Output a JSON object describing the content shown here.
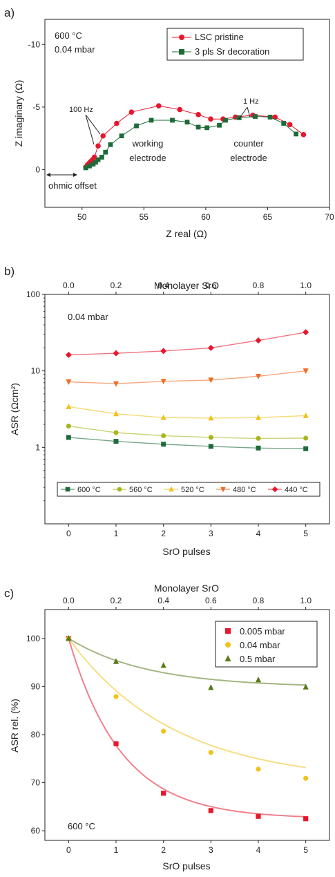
{
  "chart_data": [
    {
      "panel_label": "a)",
      "type": "line",
      "xlabel": "Z real (Ω)",
      "ylabel": "Z imaginary (Ω)",
      "xlim": [
        47,
        70
      ],
      "ylim": [
        3,
        -12
      ],
      "xticks": [
        50,
        55,
        60,
        65,
        70
      ],
      "yticks": [
        0,
        -5,
        -10
      ],
      "annotation_lines": [
        "600 °C",
        "0.04 mbar"
      ],
      "annotations": {
        "hz100": "100 Hz",
        "hz1": "1 Hz",
        "working": [
          "working",
          "electrode"
        ],
        "counter": [
          "counter",
          "electrode"
        ],
        "ohmic": "ohmic offset"
      },
      "series": [
        {
          "name": "LSC pristine",
          "color": "#e8162c",
          "marker": "circle",
          "x": [
            50.3,
            50.45,
            50.6,
            50.7,
            50.85,
            51.0,
            51.3,
            51.7,
            52.8,
            54.0,
            56.2,
            57.9,
            59.4,
            60.4,
            61.4,
            62.4,
            63.8,
            65.6,
            66.8,
            67.9
          ],
          "y": [
            -0.2,
            -0.4,
            -0.55,
            -0.65,
            -0.8,
            -1.0,
            -1.9,
            -2.7,
            -3.7,
            -4.6,
            -5.1,
            -4.8,
            -4.4,
            -4.05,
            -4.05,
            -4.2,
            -4.35,
            -4.2,
            -3.6,
            -2.8
          ]
        },
        {
          "name": "3 pls Sr decoration",
          "color": "#1e6b3a",
          "marker": "square",
          "x": [
            50.3,
            50.6,
            50.9,
            51.1,
            51.3,
            51.6,
            51.9,
            52.3,
            53.2,
            54.4,
            55.6,
            57.3,
            58.5,
            59.4,
            60.1,
            61.1,
            61.6,
            62.7,
            64.0,
            65.2,
            66.3,
            67.3
          ],
          "y": [
            -0.15,
            -0.3,
            -0.45,
            -0.6,
            -0.8,
            -1.0,
            -1.4,
            -2.0,
            -2.7,
            -3.5,
            -3.95,
            -3.95,
            -3.8,
            -3.4,
            -3.35,
            -3.55,
            -3.95,
            -4.15,
            -4.25,
            -4.2,
            -3.7,
            -2.85
          ]
        }
      ]
    },
    {
      "panel_label": "b)",
      "type": "line",
      "xlabel": "SrO pulses",
      "x2label": "Monolayer SrO",
      "ylabel": "ASR (Ωcm²)",
      "yscale": "log",
      "xlim": [
        -0.5,
        5.5
      ],
      "ylim": [
        0.1,
        100
      ],
      "xticks": [
        0,
        1,
        2,
        3,
        4,
        5
      ],
      "x2ticks": [
        "0.0",
        "0.2",
        "0.4",
        "0.6",
        "0.8",
        "1.0"
      ],
      "yticks": [
        "1",
        "10",
        "100"
      ],
      "annotation": "0.04 mbar",
      "x": [
        0,
        1,
        2,
        3,
        4,
        5
      ],
      "series": [
        {
          "name": "600 °C",
          "color": "#1e6b3a",
          "marker": "square",
          "values": [
            1.35,
            1.2,
            1.1,
            1.03,
            0.98,
            0.96
          ]
        },
        {
          "name": "560 °C",
          "color": "#a8b51a",
          "marker": "circle",
          "values": [
            1.9,
            1.56,
            1.42,
            1.35,
            1.31,
            1.32
          ]
        },
        {
          "name": "520 °C",
          "color": "#f1c21b",
          "marker": "triangle-up",
          "values": [
            3.4,
            2.75,
            2.45,
            2.42,
            2.45,
            2.6
          ]
        },
        {
          "name": "480 °C",
          "color": "#f26a25",
          "marker": "triangle-down",
          "values": [
            7.2,
            6.8,
            7.3,
            7.6,
            8.5,
            10.0
          ]
        },
        {
          "name": "440 °C",
          "color": "#e8162c",
          "marker": "diamond",
          "values": [
            16.2,
            17.0,
            18.2,
            20.0,
            25.0,
            32.0
          ]
        }
      ]
    },
    {
      "panel_label": "c)",
      "type": "scatter",
      "xlabel": "SrO pulses",
      "x2label": "Monolayer SrO",
      "ylabel": "ASR rel. (%)",
      "xlim": [
        -0.5,
        5.5
      ],
      "ylim": [
        58,
        106
      ],
      "xticks": [
        0,
        1,
        2,
        3,
        4,
        5
      ],
      "x2ticks": [
        "0.0",
        "0.2",
        "0.4",
        "0.6",
        "0.8",
        "1.0"
      ],
      "yticks": [
        60,
        70,
        80,
        90,
        100
      ],
      "annotation": "600 °C",
      "x": [
        0,
        1,
        2,
        3,
        4,
        5
      ],
      "series": [
        {
          "name": "0.005 mbar",
          "color": "#e8162c",
          "marker": "square",
          "values": [
            100,
            78.1,
            67.8,
            64.2,
            63.0,
            62.5
          ],
          "fit": {
            "asymptote": 62.5,
            "rate": 0.9
          }
        },
        {
          "name": "0.04 mbar",
          "color": "#f1c21b",
          "marker": "circle",
          "values": [
            100,
            87.9,
            80.7,
            76.3,
            72.8,
            70.9
          ],
          "fit": {
            "asymptote": 70.0,
            "rate": 0.45
          }
        },
        {
          "name": "0.5 mbar",
          "color": "#5a7a1a",
          "marker": "triangle-up",
          "values": [
            100,
            95.2,
            94.4,
            89.8,
            91.4,
            89.9
          ],
          "fit": {
            "asymptote": 89.8,
            "rate": 0.6
          }
        }
      ]
    }
  ]
}
